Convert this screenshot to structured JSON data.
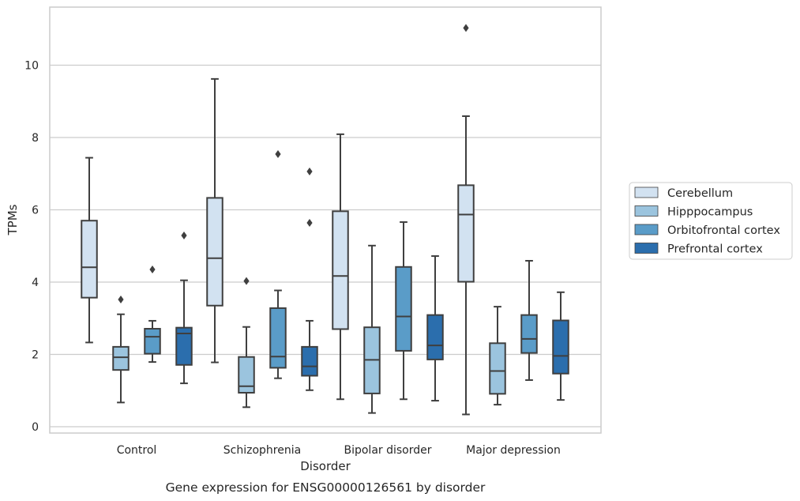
{
  "chart_data": {
    "type": "box",
    "title": "Gene expression for ENSG00000126561 by disorder",
    "xlabel": "Disorder",
    "ylabel": "TPMs",
    "ylim": [
      -0.2,
      11.6
    ],
    "yticks": [
      0,
      2,
      4,
      6,
      8,
      10
    ],
    "categories": [
      "Control",
      "Schizophrenia",
      "Bipolar disorder",
      "Major depression"
    ],
    "grid": "horizontal",
    "legend_position": "right",
    "series": [
      {
        "name": "Cerebellum",
        "color": "#d2e2f1",
        "boxes": [
          {
            "whisker_low": 2.33,
            "q1": 3.57,
            "median": 4.41,
            "q3": 5.7,
            "whisker_high": 7.44,
            "outliers": []
          },
          {
            "whisker_low": 1.78,
            "q1": 3.35,
            "median": 4.66,
            "q3": 6.33,
            "whisker_high": 9.62,
            "outliers": []
          },
          {
            "whisker_low": 0.76,
            "q1": 2.7,
            "median": 4.17,
            "q3": 5.96,
            "whisker_high": 8.09,
            "outliers": []
          },
          {
            "whisker_low": 0.34,
            "q1": 4.01,
            "median": 5.87,
            "q3": 6.68,
            "whisker_high": 8.59,
            "outliers": [
              11.03
            ]
          }
        ]
      },
      {
        "name": "Hipppocampus",
        "color": "#9bc4de",
        "boxes": [
          {
            "whisker_low": 0.67,
            "q1": 1.57,
            "median": 1.92,
            "q3": 2.21,
            "whisker_high": 3.11,
            "outliers": [
              3.52
            ]
          },
          {
            "whisker_low": 0.54,
            "q1": 0.94,
            "median": 1.12,
            "q3": 1.93,
            "whisker_high": 2.76,
            "outliers": [
              4.03
            ]
          },
          {
            "whisker_low": 0.38,
            "q1": 0.92,
            "median": 1.85,
            "q3": 2.75,
            "whisker_high": 5.01,
            "outliers": []
          },
          {
            "whisker_low": 0.61,
            "q1": 0.91,
            "median": 1.54,
            "q3": 2.31,
            "whisker_high": 3.32,
            "outliers": []
          }
        ]
      },
      {
        "name": "Orbitofrontal cortex",
        "color": "#5a9cc8",
        "boxes": [
          {
            "whisker_low": 1.79,
            "q1": 2.02,
            "median": 2.49,
            "q3": 2.71,
            "whisker_high": 2.93,
            "outliers": [
              4.35
            ]
          },
          {
            "whisker_low": 1.34,
            "q1": 1.63,
            "median": 1.94,
            "q3": 3.28,
            "whisker_high": 3.77,
            "outliers": [
              7.54
            ]
          },
          {
            "whisker_low": 0.76,
            "q1": 2.1,
            "median": 3.05,
            "q3": 4.42,
            "whisker_high": 5.66,
            "outliers": []
          },
          {
            "whisker_low": 1.29,
            "q1": 2.04,
            "median": 2.43,
            "q3": 3.09,
            "whisker_high": 4.59,
            "outliers": []
          }
        ]
      },
      {
        "name": "Prefrontal cortex",
        "color": "#2b6ead",
        "boxes": [
          {
            "whisker_low": 1.2,
            "q1": 1.71,
            "median": 2.58,
            "q3": 2.74,
            "whisker_high": 4.05,
            "outliers": [
              5.29
            ]
          },
          {
            "whisker_low": 1.01,
            "q1": 1.41,
            "median": 1.67,
            "q3": 2.21,
            "whisker_high": 2.93,
            "outliers": [
              5.64,
              7.06
            ]
          },
          {
            "whisker_low": 0.72,
            "q1": 1.86,
            "median": 2.25,
            "q3": 3.09,
            "whisker_high": 4.72,
            "outliers": []
          },
          {
            "whisker_low": 0.74,
            "q1": 1.47,
            "median": 1.96,
            "q3": 2.94,
            "whisker_high": 3.72,
            "outliers": []
          }
        ]
      }
    ]
  }
}
